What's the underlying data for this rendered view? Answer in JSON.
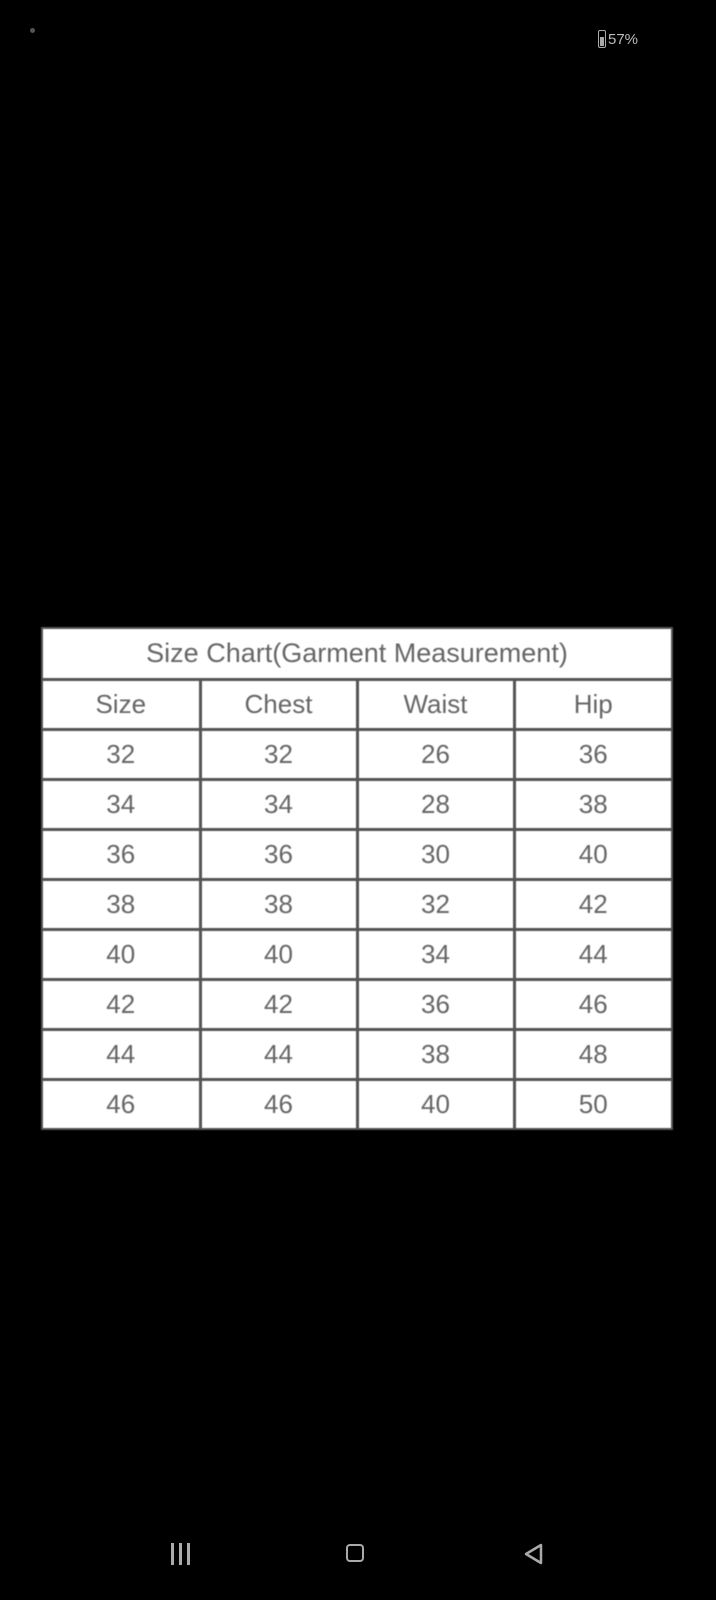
{
  "status_bar": {
    "battery_icon": "battery-icon",
    "battery_percent": "57%"
  },
  "size_chart": {
    "title": "Size Chart(Garment Measurement)",
    "headers": [
      "Size",
      "Chest",
      "Waist",
      "Hip"
    ],
    "rows": [
      [
        "32",
        "32",
        "26",
        "36"
      ],
      [
        "34",
        "34",
        "28",
        "38"
      ],
      [
        "36",
        "36",
        "30",
        "40"
      ],
      [
        "38",
        "38",
        "32",
        "42"
      ],
      [
        "40",
        "40",
        "34",
        "44"
      ],
      [
        "42",
        "42",
        "36",
        "46"
      ],
      [
        "44",
        "44",
        "38",
        "48"
      ],
      [
        "46",
        "46",
        "40",
        "50"
      ]
    ]
  },
  "nav_bar": {
    "icons": [
      "menu-icon",
      "home-icon",
      "back-icon"
    ]
  }
}
